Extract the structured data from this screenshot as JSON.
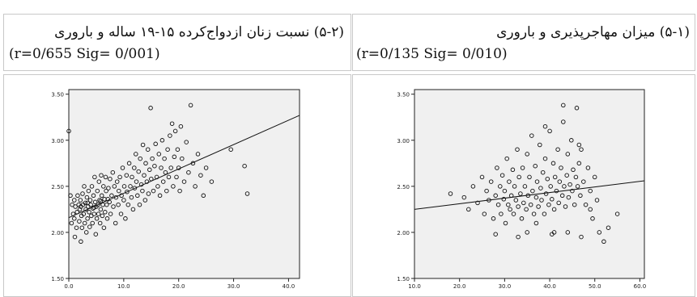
{
  "table": {
    "right_header": {
      "title": "(۵-۱) میزان مهاجرپذیری و باروری",
      "stats": "(r=0/135 Sig= 0/010)"
    },
    "left_header": {
      "title": "(۵-۲) نسبت زنان ازدواج‌کرده ۱۵-۱۹ ساله و باروری",
      "stats": "(r=0/655 Sig= 0/001)"
    }
  },
  "chart_data": [
    {
      "type": "scatter",
      "panel": "left",
      "xlim": [
        0,
        42
      ],
      "ylim": [
        1.5,
        3.55
      ],
      "xticks": [
        0,
        10,
        20,
        30,
        40
      ],
      "xtick_labels": [
        "0.0",
        "10.0",
        "20.0",
        "30.0",
        "40.0"
      ],
      "yticks": [
        1.5,
        2.0,
        2.5,
        3.0,
        3.5
      ],
      "ytick_labels": [
        "1.50",
        "2.00",
        "2.50",
        "3.00",
        "3.50"
      ],
      "fit_line": [
        [
          0,
          2.16
        ],
        [
          42,
          3.27
        ]
      ],
      "points": [
        [
          0,
          3.1
        ],
        [
          0.3,
          2.4
        ],
        [
          0.5,
          2.1
        ],
        [
          0.6,
          2.3
        ],
        [
          0.8,
          2.2
        ],
        [
          1,
          2.35
        ],
        [
          1,
          2.15
        ],
        [
          1.1,
          1.95
        ],
        [
          1.2,
          2.28
        ],
        [
          1.4,
          2.05
        ],
        [
          1.5,
          2.22
        ],
        [
          1.6,
          2.4
        ],
        [
          1.8,
          2.3
        ],
        [
          1.9,
          2.12
        ],
        [
          2,
          2.25
        ],
        [
          2.1,
          2.35
        ],
        [
          2.2,
          1.9
        ],
        [
          2.3,
          2.18
        ],
        [
          2.4,
          2.05
        ],
        [
          2.5,
          2.42
        ],
        [
          2.6,
          2.3
        ],
        [
          2.7,
          2.2
        ],
        [
          2.8,
          2.5
        ],
        [
          2.9,
          2.1
        ],
        [
          3,
          2.32
        ],
        [
          3.1,
          2.25
        ],
        [
          3.2,
          2.0
        ],
        [
          3.3,
          2.38
        ],
        [
          3.4,
          2.15
        ],
        [
          3.5,
          2.28
        ],
        [
          3.6,
          2.45
        ],
        [
          3.7,
          2.22
        ],
        [
          3.8,
          2.06
        ],
        [
          3.9,
          2.35
        ],
        [
          4,
          2.3
        ],
        [
          4.1,
          2.18
        ],
        [
          4.2,
          2.5
        ],
        [
          4.3,
          2.1
        ],
        [
          4.4,
          2.26
        ],
        [
          4.5,
          2.4
        ],
        [
          4.6,
          2.2
        ],
        [
          4.7,
          2.6
        ],
        [
          4.8,
          2.33
        ],
        [
          4.9,
          1.98
        ],
        [
          5,
          2.28
        ],
        [
          5.1,
          2.15
        ],
        [
          5.2,
          2.45
        ],
        [
          5.3,
          2.3
        ],
        [
          5.4,
          2.2
        ],
        [
          5.5,
          2.55
        ],
        [
          5.6,
          2.35
        ],
        [
          5.7,
          2.1
        ],
        [
          5.8,
          2.25
        ],
        [
          5.9,
          2.62
        ],
        [
          6,
          2.4
        ],
        [
          6.1,
          2.18
        ],
        [
          6.2,
          2.3
        ],
        [
          6.3,
          2.5
        ],
        [
          6.4,
          2.05
        ],
        [
          6.5,
          2.36
        ],
        [
          6.6,
          2.22
        ],
        [
          6.7,
          2.6
        ],
        [
          6.8,
          2.45
        ],
        [
          6.9,
          2.3
        ],
        [
          7,
          2.15
        ],
        [
          7.2,
          2.48
        ],
        [
          7.4,
          2.33
        ],
        [
          7.5,
          2.58
        ],
        [
          7.6,
          2.2
        ],
        [
          7.8,
          2.4
        ],
        [
          8,
          2.65
        ],
        [
          8.1,
          2.28
        ],
        [
          8.3,
          2.5
        ],
        [
          8.5,
          2.1
        ],
        [
          8.6,
          2.38
        ],
        [
          8.8,
          2.55
        ],
        [
          9,
          2.3
        ],
        [
          9.1,
          2.45
        ],
        [
          9.3,
          2.6
        ],
        [
          9.5,
          2.2
        ],
        [
          9.6,
          2.4
        ],
        [
          9.8,
          2.7
        ],
        [
          10,
          2.35
        ],
        [
          10.1,
          2.5
        ],
        [
          10.3,
          2.15
        ],
        [
          10.5,
          2.62
        ],
        [
          10.6,
          2.44
        ],
        [
          10.8,
          2.3
        ],
        [
          11,
          2.75
        ],
        [
          11.2,
          2.5
        ],
        [
          11.4,
          2.38
        ],
        [
          11.5,
          2.6
        ],
        [
          11.7,
          2.25
        ],
        [
          11.9,
          2.7
        ],
        [
          12,
          2.48
        ],
        [
          12.2,
          2.85
        ],
        [
          12.3,
          2.55
        ],
        [
          12.5,
          2.4
        ],
        [
          12.7,
          2.66
        ],
        [
          12.9,
          2.3
        ],
        [
          13,
          2.8
        ],
        [
          13.2,
          2.52
        ],
        [
          13.4,
          2.45
        ],
        [
          13.5,
          2.95
        ],
        [
          13.7,
          2.62
        ],
        [
          13.9,
          2.35
        ],
        [
          14,
          2.75
        ],
        [
          14.2,
          2.55
        ],
        [
          14.4,
          2.9
        ],
        [
          14.5,
          2.42
        ],
        [
          14.7,
          2.68
        ],
        [
          14.9,
          3.35
        ],
        [
          15,
          2.58
        ],
        [
          15.2,
          2.8
        ],
        [
          15.4,
          2.45
        ],
        [
          15.6,
          2.72
        ],
        [
          15.8,
          2.96
        ],
        [
          16,
          2.6
        ],
        [
          16.2,
          2.5
        ],
        [
          16.4,
          2.85
        ],
        [
          16.6,
          2.4
        ],
        [
          16.8,
          2.7
        ],
        [
          17,
          3.0
        ],
        [
          17.2,
          2.55
        ],
        [
          17.4,
          2.8
        ],
        [
          17.6,
          2.65
        ],
        [
          17.8,
          2.45
        ],
        [
          18,
          2.9
        ],
        [
          18.2,
          2.6
        ],
        [
          18.4,
          3.05
        ],
        [
          18.6,
          2.7
        ],
        [
          18.8,
          3.18
        ],
        [
          19,
          2.5
        ],
        [
          19.2,
          2.82
        ],
        [
          19.4,
          3.1
        ],
        [
          19.6,
          2.6
        ],
        [
          19.8,
          2.9
        ],
        [
          20,
          2.7
        ],
        [
          20.2,
          2.45
        ],
        [
          20.4,
          3.15
        ],
        [
          20.6,
          2.8
        ],
        [
          21,
          2.55
        ],
        [
          21.4,
          2.98
        ],
        [
          21.8,
          2.65
        ],
        [
          22.2,
          3.38
        ],
        [
          22.6,
          2.75
        ],
        [
          23,
          2.5
        ],
        [
          23.5,
          2.85
        ],
        [
          24,
          2.62
        ],
        [
          24.5,
          2.4
        ],
        [
          25,
          2.7
        ],
        [
          26,
          2.55
        ],
        [
          29.5,
          2.9
        ],
        [
          32,
          2.72
        ],
        [
          32.5,
          2.42
        ],
        [
          2.2,
          2.28
        ],
        [
          3.4,
          2.32
        ],
        [
          4.6,
          2.27
        ],
        [
          5.8,
          2.34
        ],
        [
          7.1,
          2.36
        ]
      ]
    },
    {
      "type": "scatter",
      "panel": "right",
      "xlim": [
        10,
        61
      ],
      "ylim": [
        1.5,
        3.55
      ],
      "xticks": [
        10,
        20,
        30,
        40,
        50,
        60
      ],
      "xtick_labels": [
        "10.0",
        "20.0",
        "30.0",
        "40.0",
        "50.0",
        "60.0"
      ],
      "yticks": [
        1.5,
        2.0,
        2.5,
        3.0,
        3.5
      ],
      "ytick_labels": [
        "1.50",
        "2.00",
        "2.50",
        "3.00",
        "3.50"
      ],
      "fit_line": [
        [
          10,
          2.25
        ],
        [
          61,
          2.56
        ]
      ],
      "points": [
        [
          18,
          2.42
        ],
        [
          21,
          2.38
        ],
        [
          22,
          2.25
        ],
        [
          23,
          2.5
        ],
        [
          24,
          2.32
        ],
        [
          25,
          2.6
        ],
        [
          25.5,
          2.2
        ],
        [
          26,
          2.45
        ],
        [
          26.5,
          2.35
        ],
        [
          27,
          2.55
        ],
        [
          27.5,
          2.15
        ],
        [
          28,
          2.4
        ],
        [
          28.3,
          2.7
        ],
        [
          28.6,
          2.3
        ],
        [
          29,
          2.5
        ],
        [
          29.2,
          2.2
        ],
        [
          29.5,
          2.62
        ],
        [
          29.8,
          2.36
        ],
        [
          30,
          2.45
        ],
        [
          30.2,
          2.1
        ],
        [
          30.5,
          2.8
        ],
        [
          30.8,
          2.3
        ],
        [
          31,
          2.55
        ],
        [
          31.2,
          2.25
        ],
        [
          31.5,
          2.4
        ],
        [
          31.8,
          2.68
        ],
        [
          32,
          2.2
        ],
        [
          32.2,
          2.5
        ],
        [
          32.5,
          2.35
        ],
        [
          32.8,
          2.9
        ],
        [
          33,
          2.28
        ],
        [
          33.2,
          2.6
        ],
        [
          33.5,
          2.42
        ],
        [
          33.8,
          2.15
        ],
        [
          34,
          2.7
        ],
        [
          34.2,
          2.32
        ],
        [
          34.5,
          2.5
        ],
        [
          34.8,
          2.25
        ],
        [
          35,
          2.85
        ],
        [
          35.2,
          2.4
        ],
        [
          35.5,
          2.6
        ],
        [
          35.8,
          2.3
        ],
        [
          36,
          3.05
        ],
        [
          36.2,
          2.45
        ],
        [
          36.5,
          2.2
        ],
        [
          36.8,
          2.72
        ],
        [
          37,
          2.38
        ],
        [
          37.2,
          2.55
        ],
        [
          37.5,
          2.28
        ],
        [
          37.8,
          2.95
        ],
        [
          38,
          2.48
        ],
        [
          38.2,
          2.35
        ],
        [
          38.5,
          2.65
        ],
        [
          38.8,
          2.2
        ],
        [
          39,
          2.8
        ],
        [
          39.2,
          2.42
        ],
        [
          39.5,
          2.58
        ],
        [
          39.8,
          2.3
        ],
        [
          40,
          3.1
        ],
        [
          40.2,
          2.5
        ],
        [
          40.5,
          2.36
        ],
        [
          40.8,
          2.75
        ],
        [
          41,
          2.25
        ],
        [
          41.2,
          2.6
        ],
        [
          41.5,
          2.45
        ],
        [
          41.8,
          2.9
        ],
        [
          42,
          2.32
        ],
        [
          42.2,
          2.55
        ],
        [
          42.5,
          2.7
        ],
        [
          42.8,
          2.4
        ],
        [
          43,
          3.2
        ],
        [
          43.2,
          2.5
        ],
        [
          43.5,
          2.28
        ],
        [
          43.8,
          2.62
        ],
        [
          44,
          2.85
        ],
        [
          44.2,
          2.38
        ],
        [
          44.5,
          2.52
        ],
        [
          44.8,
          3.0
        ],
        [
          45,
          2.45
        ],
        [
          45.2,
          2.68
        ],
        [
          45.5,
          2.3
        ],
        [
          45.8,
          2.6
        ],
        [
          46,
          3.35
        ],
        [
          46.2,
          2.5
        ],
        [
          46.5,
          2.75
        ],
        [
          46.8,
          2.4
        ],
        [
          47,
          2.9
        ],
        [
          47.5,
          2.55
        ],
        [
          48,
          2.3
        ],
        [
          48.5,
          2.7
        ],
        [
          49,
          2.45
        ],
        [
          49.5,
          2.15
        ],
        [
          50,
          2.6
        ],
        [
          50.5,
          2.35
        ],
        [
          51,
          2.0
        ],
        [
          52,
          1.9
        ],
        [
          53,
          2.05
        ],
        [
          55,
          2.2
        ],
        [
          47,
          1.95
        ],
        [
          44,
          2.0
        ],
        [
          39,
          3.15
        ],
        [
          37,
          2.1
        ],
        [
          33,
          1.95
        ],
        [
          41,
          2.0
        ],
        [
          43,
          3.38
        ],
        [
          28,
          1.98
        ],
        [
          46.5,
          2.95
        ],
        [
          35,
          2.0
        ],
        [
          40.5,
          1.98
        ],
        [
          49,
          2.25
        ]
      ]
    }
  ]
}
